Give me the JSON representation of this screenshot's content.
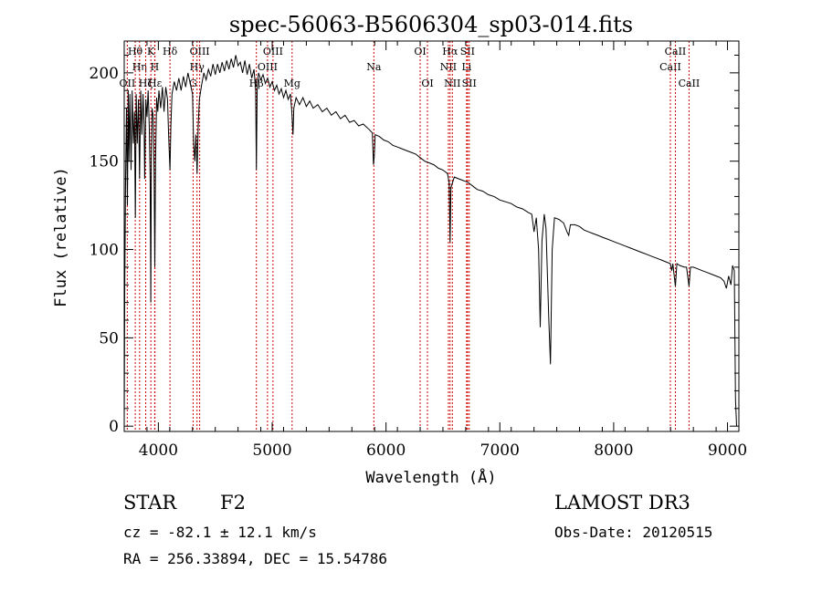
{
  "chart_data": {
    "type": "line",
    "title": "spec-56063-B5606304_sp03-014.fits",
    "xlabel": "Wavelength (Å)",
    "ylabel": "Flux (relative)",
    "xlim": [
      3700,
      9100
    ],
    "ylim": [
      -3,
      218
    ],
    "x_ticks": [
      4000,
      5000,
      6000,
      7000,
      8000,
      9000
    ],
    "y_ticks": [
      0,
      50,
      100,
      150,
      200
    ],
    "grid": false,
    "series": [
      {
        "name": "flux",
        "points": [
          [
            3700,
            0
          ],
          [
            3705,
            80
          ],
          [
            3712,
            140
          ],
          [
            3720,
            180
          ],
          [
            3728,
            125
          ],
          [
            3735,
            190
          ],
          [
            3742,
            150
          ],
          [
            3750,
            188
          ],
          [
            3760,
            145
          ],
          [
            3770,
            190
          ],
          [
            3780,
            160
          ],
          [
            3790,
            178
          ],
          [
            3798,
            118
          ],
          [
            3805,
            188
          ],
          [
            3815,
            160
          ],
          [
            3825,
            185
          ],
          [
            3835,
            140
          ],
          [
            3845,
            190
          ],
          [
            3855,
            165
          ],
          [
            3865,
            188
          ],
          [
            3875,
            170
          ],
          [
            3880,
            140
          ],
          [
            3890,
            185
          ],
          [
            3900,
            175
          ],
          [
            3910,
            190
          ],
          [
            3920,
            170
          ],
          [
            3928,
            140
          ],
          [
            3933.7,
            70
          ],
          [
            3938,
            150
          ],
          [
            3945,
            180
          ],
          [
            3955,
            175
          ],
          [
            3962,
            145
          ],
          [
            3968.5,
            90
          ],
          [
            3975,
            150
          ],
          [
            3985,
            186
          ],
          [
            3995,
            178
          ],
          [
            4005,
            190
          ],
          [
            4020,
            180
          ],
          [
            4035,
            192
          ],
          [
            4050,
            178
          ],
          [
            4065,
            192
          ],
          [
            4080,
            185
          ],
          [
            4090,
            165
          ],
          [
            4101.7,
            145
          ],
          [
            4110,
            170
          ],
          [
            4120,
            188
          ],
          [
            4140,
            195
          ],
          [
            4160,
            190
          ],
          [
            4180,
            197
          ],
          [
            4200,
            190
          ],
          [
            4220,
            198
          ],
          [
            4240,
            192
          ],
          [
            4260,
            200
          ],
          [
            4280,
            194
          ],
          [
            4300,
            188
          ],
          [
            4310,
            160
          ],
          [
            4320,
            150
          ],
          [
            4330,
            165
          ],
          [
            4340.5,
            143
          ],
          [
            4350,
            170
          ],
          [
            4360,
            185
          ],
          [
            4380,
            193
          ],
          [
            4400,
            200
          ],
          [
            4420,
            196
          ],
          [
            4440,
            202
          ],
          [
            4460,
            198
          ],
          [
            4480,
            205
          ],
          [
            4500,
            199
          ],
          [
            4520,
            205
          ],
          [
            4540,
            200
          ],
          [
            4560,
            206
          ],
          [
            4580,
            201
          ],
          [
            4600,
            207
          ],
          [
            4620,
            202
          ],
          [
            4640,
            208
          ],
          [
            4660,
            203
          ],
          [
            4680,
            210
          ],
          [
            4700,
            204
          ],
          [
            4720,
            206
          ],
          [
            4740,
            200
          ],
          [
            4760,
            207
          ],
          [
            4780,
            199
          ],
          [
            4800,
            205
          ],
          [
            4820,
            197
          ],
          [
            4840,
            202
          ],
          [
            4855,
            190
          ],
          [
            4861.3,
            145
          ],
          [
            4868,
            192
          ],
          [
            4880,
            200
          ],
          [
            4900,
            196
          ],
          [
            4920,
            199
          ],
          [
            4940,
            194
          ],
          [
            4960,
            197
          ],
          [
            4980,
            192
          ],
          [
            5000,
            195
          ],
          [
            5020,
            190
          ],
          [
            5040,
            193
          ],
          [
            5060,
            188
          ],
          [
            5080,
            191
          ],
          [
            5100,
            186
          ],
          [
            5120,
            190
          ],
          [
            5140,
            185
          ],
          [
            5160,
            188
          ],
          [
            5172,
            178
          ],
          [
            5183,
            165
          ],
          [
            5190,
            180
          ],
          [
            5210,
            186
          ],
          [
            5240,
            182
          ],
          [
            5270,
            186
          ],
          [
            5300,
            181
          ],
          [
            5330,
            184
          ],
          [
            5360,
            180
          ],
          [
            5400,
            182
          ],
          [
            5440,
            178
          ],
          [
            5480,
            180
          ],
          [
            5520,
            176
          ],
          [
            5560,
            178
          ],
          [
            5600,
            174
          ],
          [
            5640,
            176
          ],
          [
            5680,
            172
          ],
          [
            5720,
            173
          ],
          [
            5760,
            170
          ],
          [
            5800,
            171
          ],
          [
            5850,
            168
          ],
          [
            5880,
            166
          ],
          [
            5889.9,
            148
          ],
          [
            5896,
            152
          ],
          [
            5905,
            165
          ],
          [
            5940,
            164
          ],
          [
            5980,
            162
          ],
          [
            6020,
            161
          ],
          [
            6060,
            159
          ],
          [
            6100,
            158
          ],
          [
            6140,
            157
          ],
          [
            6180,
            156
          ],
          [
            6220,
            155
          ],
          [
            6260,
            154
          ],
          [
            6300,
            152
          ],
          [
            6340,
            150
          ],
          [
            6380,
            149
          ],
          [
            6420,
            148
          ],
          [
            6460,
            146
          ],
          [
            6500,
            145
          ],
          [
            6540,
            143
          ],
          [
            6555,
            138
          ],
          [
            6563,
            104
          ],
          [
            6570,
            135
          ],
          [
            6600,
            141
          ],
          [
            6640,
            140
          ],
          [
            6680,
            139
          ],
          [
            6720,
            138
          ],
          [
            6760,
            136
          ],
          [
            6800,
            134
          ],
          [
            6850,
            133
          ],
          [
            6900,
            131
          ],
          [
            6950,
            130
          ],
          [
            7000,
            128
          ],
          [
            7050,
            127
          ],
          [
            7100,
            126
          ],
          [
            7150,
            124
          ],
          [
            7200,
            123
          ],
          [
            7250,
            121
          ],
          [
            7280,
            120
          ],
          [
            7300,
            110
          ],
          [
            7320,
            118
          ],
          [
            7340,
            100
          ],
          [
            7355,
            56
          ],
          [
            7370,
            105
          ],
          [
            7390,
            120
          ],
          [
            7405,
            112
          ],
          [
            7430,
            60
          ],
          [
            7445,
            35
          ],
          [
            7460,
            100
          ],
          [
            7480,
            118
          ],
          [
            7520,
            117
          ],
          [
            7560,
            115
          ],
          [
            7590,
            110
          ],
          [
            7605,
            108
          ],
          [
            7620,
            114
          ],
          [
            7660,
            114
          ],
          [
            7700,
            113
          ],
          [
            7740,
            111
          ],
          [
            7780,
            110
          ],
          [
            7820,
            109
          ],
          [
            7860,
            108
          ],
          [
            7900,
            107
          ],
          [
            7940,
            106
          ],
          [
            7980,
            105
          ],
          [
            8020,
            104
          ],
          [
            8060,
            103
          ],
          [
            8100,
            102
          ],
          [
            8140,
            101
          ],
          [
            8180,
            100
          ],
          [
            8220,
            99
          ],
          [
            8260,
            98
          ],
          [
            8300,
            97
          ],
          [
            8340,
            96
          ],
          [
            8380,
            95
          ],
          [
            8420,
            94
          ],
          [
            8460,
            93
          ],
          [
            8498,
            92
          ],
          [
            8510,
            88
          ],
          [
            8520,
            92
          ],
          [
            8542,
            79
          ],
          [
            8555,
            92
          ],
          [
            8580,
            91
          ],
          [
            8620,
            90
          ],
          [
            8640,
            90
          ],
          [
            8662,
            79
          ],
          [
            8675,
            90
          ],
          [
            8700,
            90
          ],
          [
            8740,
            89
          ],
          [
            8780,
            88
          ],
          [
            8820,
            87
          ],
          [
            8860,
            86
          ],
          [
            8900,
            85
          ],
          [
            8940,
            84
          ],
          [
            8970,
            82
          ],
          [
            8990,
            78
          ],
          [
            9010,
            85
          ],
          [
            9030,
            80
          ],
          [
            9045,
            91
          ],
          [
            9060,
            88
          ],
          [
            9070,
            15
          ],
          [
            9080,
            0
          ]
        ]
      }
    ],
    "lines": [
      {
        "name": "OII",
        "wavelength": 3727,
        "label_row": 3
      },
      {
        "name": "Hθ",
        "wavelength": 3797,
        "label_row": 1
      },
      {
        "name": "Hη",
        "wavelength": 3835,
        "label_row": 2
      },
      {
        "name": "Hζ",
        "wavelength": 3889,
        "label_row": 3
      },
      {
        "name": "K",
        "wavelength": 3934,
        "label_row": 1
      },
      {
        "name": "H",
        "wavelength": 3968,
        "label_row": 2
      },
      {
        "name": "Hε",
        "wavelength": 3970,
        "label_row": 3
      },
      {
        "name": "Hδ",
        "wavelength": 4102,
        "label_row": 1
      },
      {
        "name": "G",
        "wavelength": 4305,
        "label_row": 3
      },
      {
        "name": "Hγ",
        "wavelength": 4340,
        "label_row": 2
      },
      {
        "name": "OIII",
        "wavelength": 4363,
        "label_row": 1
      },
      {
        "name": "Hβ",
        "wavelength": 4861,
        "label_row": 3
      },
      {
        "name": "OIII",
        "wavelength": 4959,
        "label_row": 2
      },
      {
        "name": "OIII",
        "wavelength": 5007,
        "label_row": 1
      },
      {
        "name": "Mg",
        "wavelength": 5175,
        "label_row": 3
      },
      {
        "name": "Na",
        "wavelength": 5893,
        "label_row": 2
      },
      {
        "name": "OI",
        "wavelength": 6300,
        "label_row": 1
      },
      {
        "name": "OI",
        "wavelength": 6364,
        "label_row": 3
      },
      {
        "name": "NII",
        "wavelength": 6548,
        "label_row": 2
      },
      {
        "name": "Hα",
        "wavelength": 6563,
        "label_row": 1
      },
      {
        "name": "NII",
        "wavelength": 6583,
        "label_row": 3
      },
      {
        "name": "Li",
        "wavelength": 6708,
        "label_row": 2
      },
      {
        "name": "SII",
        "wavelength": 6716,
        "label_row": 1
      },
      {
        "name": "SII",
        "wavelength": 6731,
        "label_row": 3
      },
      {
        "name": "CaII",
        "wavelength": 8498,
        "label_row": 2
      },
      {
        "name": "CaII",
        "wavelength": 8542,
        "label_row": 1
      },
      {
        "name": "CaII",
        "wavelength": 8662,
        "label_row": 3
      }
    ]
  },
  "footer": {
    "object_class": "STAR",
    "subclass": "F2",
    "cz": "cz = -82.1 ± 12.1 km/s",
    "coords": "RA = 256.33894, DEC =  15.54786",
    "survey": "LAMOST DR3",
    "obs_date": "Obs-Date: 20120515"
  }
}
